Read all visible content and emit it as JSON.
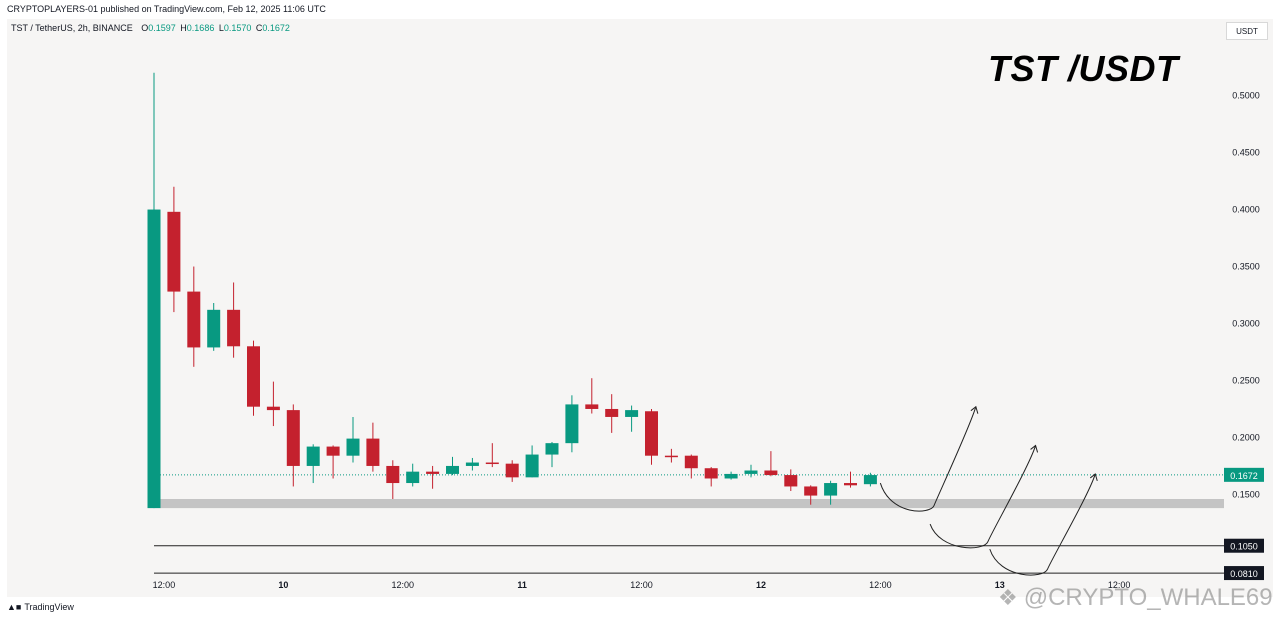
{
  "publish_line": "CRYPTOPLAYERS-01 published on TradingView.com, Feb 12, 2025 11:06 UTC",
  "legend": {
    "symbol": "TST / TetherUS, 2h, BINANCE",
    "o_label": "O",
    "o": "0.1597",
    "h_label": "H",
    "h": "0.1686",
    "l_label": "L",
    "l": "0.1570",
    "c_label": "C",
    "c": "0.1672"
  },
  "overlay_title": "TST /USDT",
  "currency_unit": "USDT",
  "footer_brand": "TradingView",
  "watermark": "@CRYPTO_WHALE69",
  "colors": {
    "up": "#089981",
    "down": "#c4212e",
    "support_zone": "#c4c4c4",
    "panel_bg": "#f6f5f4"
  },
  "chart_data": {
    "type": "candlestick",
    "timeframe": "2h",
    "exchange": "BINANCE",
    "y_axis": {
      "side": "right",
      "min": 0.06,
      "max": 0.54,
      "ticks": [
        "0.1500",
        "0.2000",
        "0.2500",
        "0.3000",
        "0.3500",
        "0.4000",
        "0.4500",
        "0.5000"
      ]
    },
    "x_axis": {
      "ticks": [
        "12:00",
        "10",
        "12:00",
        "11",
        "12:00",
        "12",
        "12:00",
        "13",
        "12:00"
      ],
      "tick_candle_index": [
        0.5,
        6.5,
        12.5,
        18.5,
        24.5,
        30.5,
        36.5,
        42.5,
        48.5
      ]
    },
    "current_price": "0.1672",
    "support_zone": [
      0.138,
      0.146
    ],
    "horizontal_levels": [
      "0.1050",
      "0.0810"
    ],
    "candles": [
      {
        "o": 0.138,
        "h": 0.52,
        "l": 0.138,
        "c": 0.4
      },
      {
        "o": 0.398,
        "h": 0.42,
        "l": 0.31,
        "c": 0.328
      },
      {
        "o": 0.328,
        "h": 0.35,
        "l": 0.262,
        "c": 0.279
      },
      {
        "o": 0.279,
        "h": 0.318,
        "l": 0.276,
        "c": 0.312
      },
      {
        "o": 0.312,
        "h": 0.336,
        "l": 0.27,
        "c": 0.28
      },
      {
        "o": 0.28,
        "h": 0.285,
        "l": 0.219,
        "c": 0.227
      },
      {
        "o": 0.227,
        "h": 0.249,
        "l": 0.21,
        "c": 0.224
      },
      {
        "o": 0.224,
        "h": 0.229,
        "l": 0.157,
        "c": 0.175
      },
      {
        "o": 0.175,
        "h": 0.194,
        "l": 0.16,
        "c": 0.192
      },
      {
        "o": 0.192,
        "h": 0.193,
        "l": 0.164,
        "c": 0.184
      },
      {
        "o": 0.184,
        "h": 0.218,
        "l": 0.178,
        "c": 0.199
      },
      {
        "o": 0.199,
        "h": 0.213,
        "l": 0.17,
        "c": 0.175
      },
      {
        "o": 0.175,
        "h": 0.18,
        "l": 0.146,
        "c": 0.16
      },
      {
        "o": 0.16,
        "h": 0.177,
        "l": 0.157,
        "c": 0.17
      },
      {
        "o": 0.17,
        "h": 0.175,
        "l": 0.155,
        "c": 0.168
      },
      {
        "o": 0.168,
        "h": 0.183,
        "l": 0.167,
        "c": 0.175
      },
      {
        "o": 0.175,
        "h": 0.182,
        "l": 0.171,
        "c": 0.178
      },
      {
        "o": 0.178,
        "h": 0.195,
        "l": 0.174,
        "c": 0.177
      },
      {
        "o": 0.177,
        "h": 0.18,
        "l": 0.161,
        "c": 0.165
      },
      {
        "o": 0.165,
        "h": 0.193,
        "l": 0.165,
        "c": 0.185
      },
      {
        "o": 0.185,
        "h": 0.196,
        "l": 0.174,
        "c": 0.195
      },
      {
        "o": 0.195,
        "h": 0.237,
        "l": 0.187,
        "c": 0.229
      },
      {
        "o": 0.229,
        "h": 0.252,
        "l": 0.221,
        "c": 0.225
      },
      {
        "o": 0.225,
        "h": 0.238,
        "l": 0.204,
        "c": 0.218
      },
      {
        "o": 0.218,
        "h": 0.228,
        "l": 0.205,
        "c": 0.224
      },
      {
        "o": 0.223,
        "h": 0.225,
        "l": 0.176,
        "c": 0.184
      },
      {
        "o": 0.184,
        "h": 0.19,
        "l": 0.178,
        "c": 0.183
      },
      {
        "o": 0.184,
        "h": 0.185,
        "l": 0.164,
        "c": 0.173
      },
      {
        "o": 0.173,
        "h": 0.174,
        "l": 0.157,
        "c": 0.164
      },
      {
        "o": 0.164,
        "h": 0.17,
        "l": 0.163,
        "c": 0.168
      },
      {
        "o": 0.168,
        "h": 0.176,
        "l": 0.165,
        "c": 0.171
      },
      {
        "o": 0.171,
        "h": 0.188,
        "l": 0.166,
        "c": 0.167
      },
      {
        "o": 0.167,
        "h": 0.172,
        "l": 0.153,
        "c": 0.157
      },
      {
        "o": 0.157,
        "h": 0.158,
        "l": 0.141,
        "c": 0.149
      },
      {
        "o": 0.149,
        "h": 0.162,
        "l": 0.141,
        "c": 0.16
      },
      {
        "o": 0.16,
        "h": 0.17,
        "l": 0.156,
        "c": 0.158
      },
      {
        "o": 0.159,
        "h": 0.169,
        "l": 0.157,
        "c": 0.167
      }
    ],
    "projection_arrows": [
      {
        "from_index": 36.5,
        "from": 0.16,
        "low_index": 38.5,
        "low": 0.137,
        "to_index": 41.3,
        "to": 0.227
      },
      {
        "from_index": 39.0,
        "from": 0.124,
        "low_index": 41.2,
        "low": 0.105,
        "to_index": 44.3,
        "to": 0.193
      },
      {
        "from_index": 42.0,
        "from": 0.102,
        "low_index": 44.2,
        "low": 0.081,
        "to_index": 47.3,
        "to": 0.168
      }
    ]
  }
}
